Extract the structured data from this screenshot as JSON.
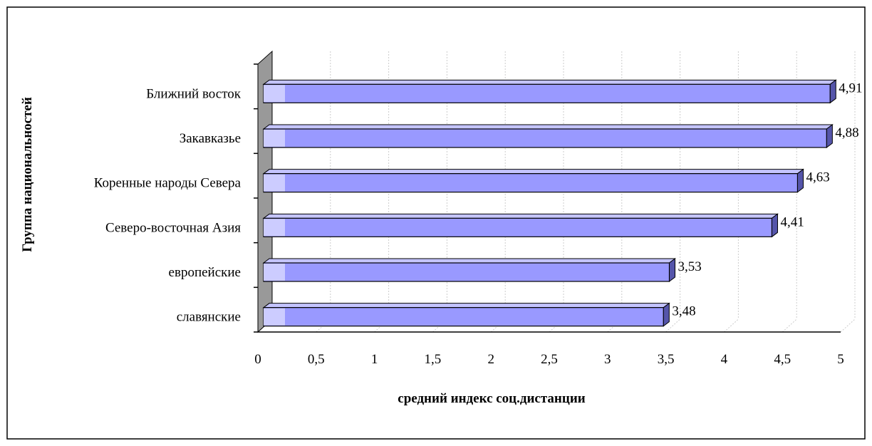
{
  "chart_data": {
    "type": "bar",
    "orientation": "horizontal",
    "style": "3d",
    "title": "",
    "xlabel": "средний индекс соц.дистанции",
    "ylabel": "Группа национальностей",
    "categories": [
      "Ближний восток",
      "Закавказье",
      "Коренные народы Севера",
      "Северо-восточная Азия",
      "европейские",
      "славянские"
    ],
    "values": [
      4.91,
      4.88,
      4.63,
      4.41,
      3.53,
      3.48
    ],
    "data_labels": [
      "4,91",
      "4,88",
      "4,63",
      "4,41",
      "3,53",
      "3,48"
    ],
    "xlim": [
      0,
      5
    ],
    "x_ticks": [
      "0",
      "0,5",
      "1",
      "1,5",
      "2",
      "2,5",
      "3",
      "3,5",
      "4",
      "4,5",
      "5"
    ],
    "grid": true,
    "legend": "none",
    "colors": {
      "bar_front": "#9999ff",
      "bar_top": "#c4c4ff",
      "bar_side": "#5555aa",
      "bar_stroke": "#000000",
      "wall": "#999999",
      "grid": "#cccccc"
    }
  }
}
